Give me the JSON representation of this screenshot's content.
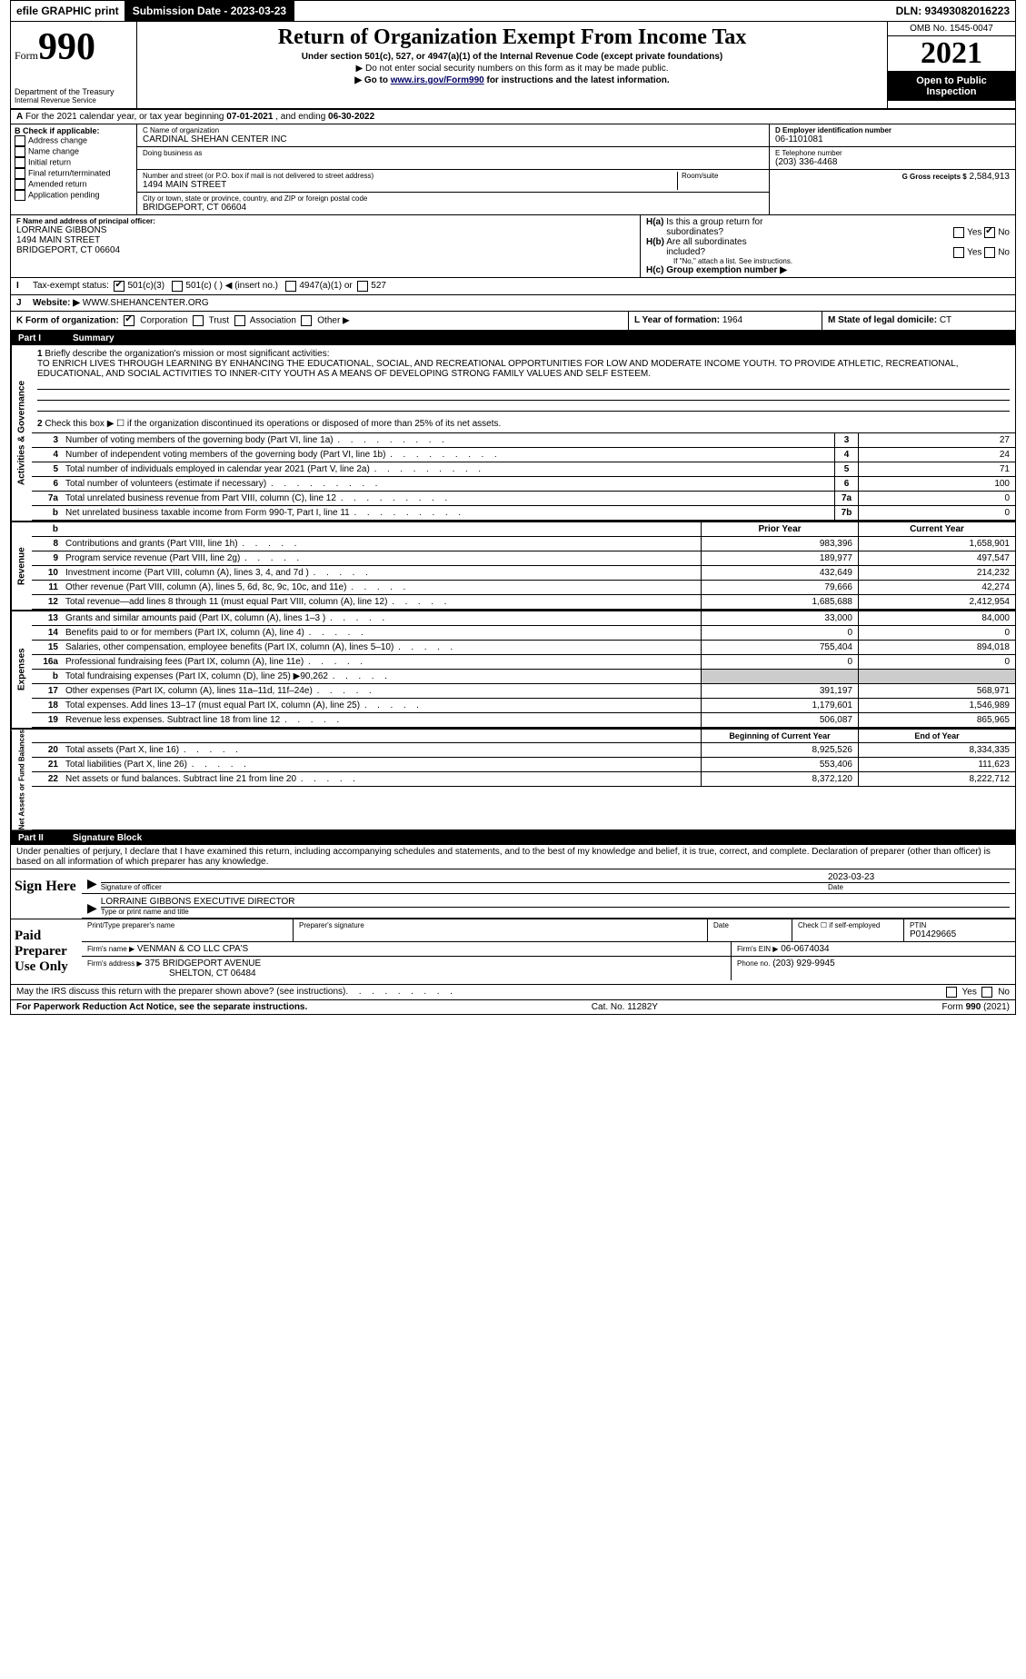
{
  "top": {
    "efile": "efile GRAPHIC print",
    "submission_btn": "Submission Date - 2023-03-23",
    "dln": "DLN: 93493082016223"
  },
  "header": {
    "form_prefix": "Form",
    "form_number": "990",
    "dept": "Department of the Treasury",
    "irs": "Internal Revenue Service",
    "title": "Return of Organization Exempt From Income Tax",
    "subtitle": "Under section 501(c), 527, or 4947(a)(1) of the Internal Revenue Code (except private foundations)",
    "instr1": "▶ Do not enter social security numbers on this form as it may be made public.",
    "instr2_pre": "▶ Go to ",
    "instr2_link": "www.irs.gov/Form990",
    "instr2_post": " for instructions and the latest information.",
    "omb": "OMB No. 1545-0047",
    "year": "2021",
    "inspection1": "Open to Public",
    "inspection2": "Inspection"
  },
  "lineA": {
    "text_pre": "For the 2021 calendar year, or tax year beginning ",
    "begin": "07-01-2021",
    "text_mid": " , and ending ",
    "end": "06-30-2022"
  },
  "boxB": {
    "label": "B Check if applicable:",
    "items": [
      "Address change",
      "Name change",
      "Initial return",
      "Final return/terminated",
      "Amended return",
      "Application pending"
    ]
  },
  "boxC": {
    "label": "C Name of organization",
    "name": "CARDINAL SHEHAN CENTER INC",
    "dba_label": "Doing business as",
    "addr_label": "Number and street (or P.O. box if mail is not delivered to street address)",
    "room_label": "Room/suite",
    "street": "1494 MAIN STREET",
    "city_label": "City or town, state or province, country, and ZIP or foreign postal code",
    "city": "BRIDGEPORT, CT  06604"
  },
  "boxD": {
    "label": "D Employer identification number",
    "val": "06-1101081"
  },
  "boxE": {
    "label": "E Telephone number",
    "val": "(203) 336-4468"
  },
  "boxG": {
    "label": "G Gross receipts $",
    "val": "2,584,913"
  },
  "boxF": {
    "label": "F Name and address of principal officer:",
    "name": "LORRAINE GIBBONS",
    "street": "1494 MAIN STREET",
    "city": "BRIDGEPORT, CT  06604"
  },
  "boxH": {
    "a_label": "H(a)  Is this a group return for subordinates?",
    "b_label": "H(b)  Are all subordinates included?",
    "b_note": "If \"No,\" attach a list. See instructions.",
    "c_label": "H(c)  Group exemption number ▶",
    "yes": "Yes",
    "no": "No"
  },
  "boxI": {
    "label": "Tax-exempt status:",
    "o1": "501(c)(3)",
    "o2": "501(c) (   ) ◀ (insert no.)",
    "o3": "4947(a)(1) or",
    "o4": "527"
  },
  "boxJ": {
    "label": "Website: ▶",
    "val": "WWW.SHEHANCENTER.ORG"
  },
  "boxK": {
    "label": "K Form of organization:",
    "o1": "Corporation",
    "o2": "Trust",
    "o3": "Association",
    "o4": "Other ▶"
  },
  "boxL": {
    "label": "L Year of formation:",
    "val": "1964"
  },
  "boxM": {
    "label": "M State of legal domicile:",
    "val": "CT"
  },
  "part1": {
    "label": "Part I",
    "title": "Summary"
  },
  "p1line1": {
    "num": "1",
    "label": "Briefly describe the organization's mission or most significant activities:",
    "text": "TO ENRICH LIVES THROUGH LEARNING BY ENHANCING THE EDUCATIONAL, SOCIAL, AND RECREATIONAL OPPORTUNITIES FOR LOW AND MODERATE INCOME YOUTH. TO PROVIDE ATHLETIC, RECREATIONAL, EDUCATIONAL, AND SOCIAL ACTIVITIES TO INNER-CITY YOUTH AS A MEANS OF DEVELOPING STRONG FAMILY VALUES AND SELF ESTEEM."
  },
  "p1line2": {
    "num": "2",
    "label": "Check this box ▶ ☐ if the organization discontinued its operations or disposed of more than 25% of its net assets."
  },
  "gov_rows": [
    {
      "num": "3",
      "desc": "Number of voting members of the governing body (Part VI, line 1a)",
      "box": "3",
      "val": "27"
    },
    {
      "num": "4",
      "desc": "Number of independent voting members of the governing body (Part VI, line 1b)",
      "box": "4",
      "val": "24"
    },
    {
      "num": "5",
      "desc": "Total number of individuals employed in calendar year 2021 (Part V, line 2a)",
      "box": "5",
      "val": "71"
    },
    {
      "num": "6",
      "desc": "Total number of volunteers (estimate if necessary)",
      "box": "6",
      "val": "100"
    },
    {
      "num": "7a",
      "desc": "Total unrelated business revenue from Part VIII, column (C), line 12",
      "box": "7a",
      "val": "0"
    },
    {
      "num": "b",
      "desc": "Net unrelated business taxable income from Form 990-T, Part I, line 11",
      "box": "7b",
      "val": "0"
    }
  ],
  "pycy": {
    "py": "Prior Year",
    "cy": "Current Year"
  },
  "rev_rows": [
    {
      "num": "8",
      "desc": "Contributions and grants (Part VIII, line 1h)",
      "py": "983,396",
      "cy": "1,658,901"
    },
    {
      "num": "9",
      "desc": "Program service revenue (Part VIII, line 2g)",
      "py": "189,977",
      "cy": "497,547"
    },
    {
      "num": "10",
      "desc": "Investment income (Part VIII, column (A), lines 3, 4, and 7d )",
      "py": "432,649",
      "cy": "214,232"
    },
    {
      "num": "11",
      "desc": "Other revenue (Part VIII, column (A), lines 5, 6d, 8c, 9c, 10c, and 11e)",
      "py": "79,666",
      "cy": "42,274"
    },
    {
      "num": "12",
      "desc": "Total revenue—add lines 8 through 11 (must equal Part VIII, column (A), line 12)",
      "py": "1,685,688",
      "cy": "2,412,954"
    }
  ],
  "exp_rows": [
    {
      "num": "13",
      "desc": "Grants and similar amounts paid (Part IX, column (A), lines 1–3 )",
      "py": "33,000",
      "cy": "84,000"
    },
    {
      "num": "14",
      "desc": "Benefits paid to or for members (Part IX, column (A), line 4)",
      "py": "0",
      "cy": "0"
    },
    {
      "num": "15",
      "desc": "Salaries, other compensation, employee benefits (Part IX, column (A), lines 5–10)",
      "py": "755,404",
      "cy": "894,018"
    },
    {
      "num": "16a",
      "desc": "Professional fundraising fees (Part IX, column (A), line 11e)",
      "py": "0",
      "cy": "0"
    },
    {
      "num": "b",
      "desc": "Total fundraising expenses (Part IX, column (D), line 25) ▶90,262",
      "py": "sh",
      "cy": "sh"
    },
    {
      "num": "17",
      "desc": "Other expenses (Part IX, column (A), lines 11a–11d, 11f–24e)",
      "py": "391,197",
      "cy": "568,971"
    },
    {
      "num": "18",
      "desc": "Total expenses. Add lines 13–17 (must equal Part IX, column (A), line 25)",
      "py": "1,179,601",
      "cy": "1,546,989"
    },
    {
      "num": "19",
      "desc": "Revenue less expenses. Subtract line 18 from line 12",
      "py": "506,087",
      "cy": "865,965"
    }
  ],
  "nacy": {
    "py": "Beginning of Current Year",
    "cy": "End of Year"
  },
  "na_rows": [
    {
      "num": "20",
      "desc": "Total assets (Part X, line 16)",
      "py": "8,925,526",
      "cy": "8,334,335"
    },
    {
      "num": "21",
      "desc": "Total liabilities (Part X, line 26)",
      "py": "553,406",
      "cy": "111,623"
    },
    {
      "num": "22",
      "desc": "Net assets or fund balances. Subtract line 21 from line 20",
      "py": "8,372,120",
      "cy": "8,222,712"
    }
  ],
  "part2": {
    "label": "Part II",
    "title": "Signature Block"
  },
  "perjury": "Under penalties of perjury, I declare that I have examined this return, including accompanying schedules and statements, and to the best of my knowledge and belief, it is true, correct, and complete. Declaration of preparer (other than officer) is based on all information of which preparer has any knowledge.",
  "sign": {
    "here": "Sign Here",
    "sig_label": "Signature of officer",
    "date_label": "Date",
    "date": "2023-03-23",
    "name": "LORRAINE GIBBONS  EXECUTIVE DIRECTOR",
    "name_label": "Type or print name and title"
  },
  "paid": {
    "side": "Paid Preparer Use Only",
    "h1": "Print/Type preparer's name",
    "h2": "Preparer's signature",
    "h3": "Date",
    "h4_pre": "Check ☐ if self-employed",
    "h5": "PTIN",
    "ptin": "P01429665",
    "firm_label": "Firm's name   ▶",
    "firm": "VENMAN & CO LLC CPA'S",
    "ein_label": "Firm's EIN ▶",
    "ein": "06-0674034",
    "addr_label": "Firm's address ▶",
    "addr1": "375 BRIDGEPORT AVENUE",
    "addr2": "SHELTON, CT  06484",
    "phone_label": "Phone no.",
    "phone": "(203) 929-9945"
  },
  "discuss": {
    "q": "May the IRS discuss this return with the preparer shown above? (see instructions)",
    "yes": "Yes",
    "no": "No"
  },
  "footer": {
    "pra": "For Paperwork Reduction Act Notice, see the separate instructions.",
    "cat": "Cat. No. 11282Y",
    "form": "Form 990 (2021)"
  },
  "side_labels": {
    "gov": "Activities & Governance",
    "rev": "Revenue",
    "exp": "Expenses",
    "na": "Net Assets or Fund Balances"
  }
}
